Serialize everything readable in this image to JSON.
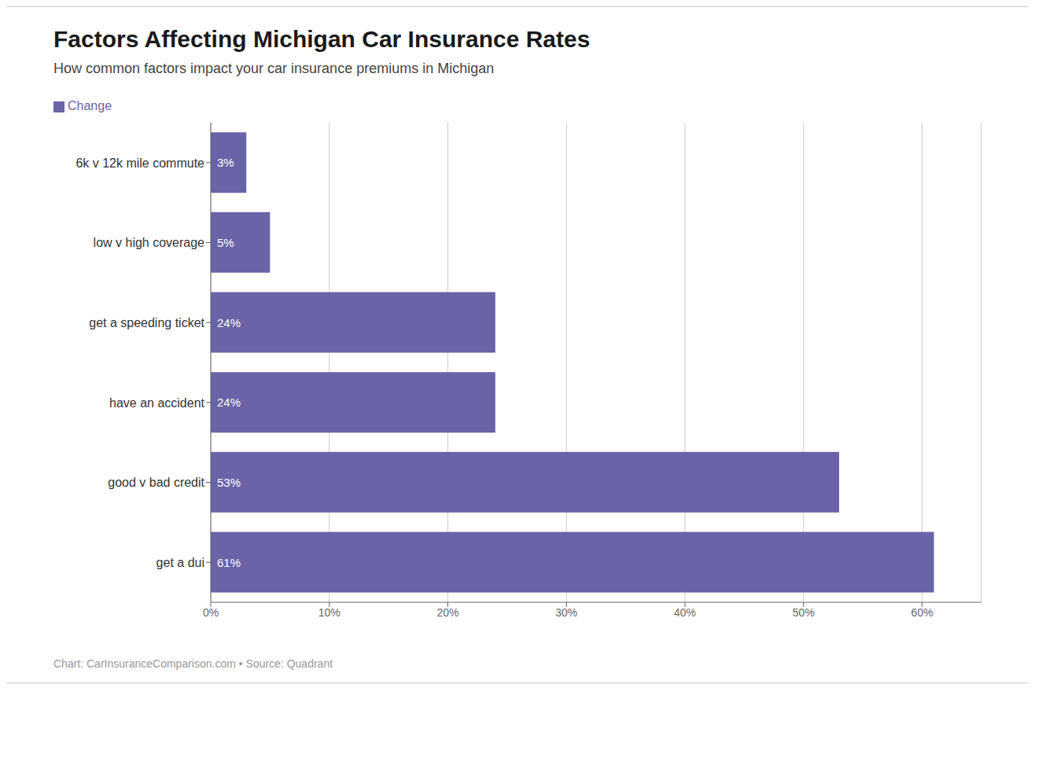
{
  "chart_data": {
    "type": "bar",
    "orientation": "horizontal",
    "title": "Factors Affecting Michigan Car Insurance Rates",
    "subtitle": "How common factors impact your car insurance premiums in Michigan",
    "footer": "Chart: CarInsuranceComparison.com • Source: Quadrant",
    "categories": [
      "6k v 12k mile commute",
      "low v high coverage",
      "get a speeding ticket",
      "have an accident",
      "good v bad credit",
      "get a dui"
    ],
    "series": [
      {
        "name": "Change",
        "color": "#6b63a8",
        "values": [
          3,
          5,
          24,
          24,
          53,
          61
        ],
        "value_labels": [
          "3%",
          "5%",
          "24%",
          "24%",
          "53%",
          "61%"
        ]
      }
    ],
    "xlim": [
      0,
      65
    ],
    "xticks": [
      {
        "value": 0,
        "label": "0%"
      },
      {
        "value": 10,
        "label": "10%"
      },
      {
        "value": 20,
        "label": "20%"
      },
      {
        "value": 30,
        "label": "30%"
      },
      {
        "value": 40,
        "label": "40%"
      },
      {
        "value": 50,
        "label": "50%"
      },
      {
        "value": 60,
        "label": "60%"
      }
    ],
    "grid": true,
    "legend": "top",
    "data_labels": true
  }
}
